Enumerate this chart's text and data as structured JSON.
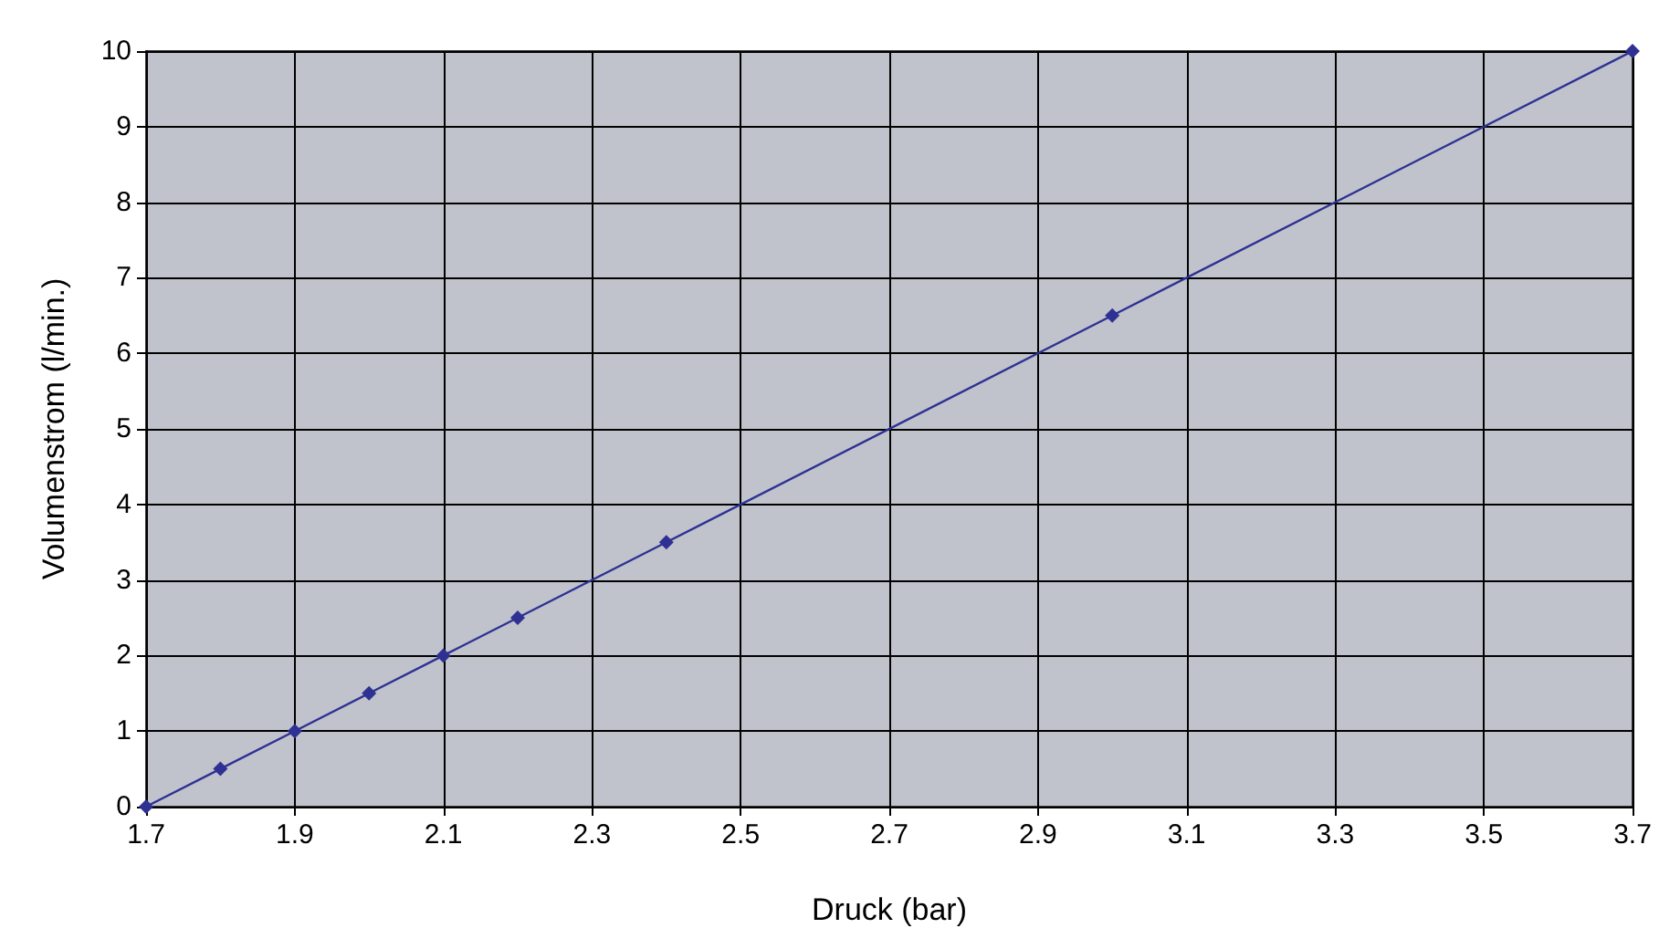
{
  "chart_data": {
    "type": "line",
    "xlabel": "Druck (bar)",
    "ylabel": "Volumenstrom (l/min.)",
    "x": [
      1.7,
      1.8,
      1.9,
      2.0,
      2.1,
      2.2,
      2.4,
      3.0,
      3.7
    ],
    "series": [
      {
        "color": "#2e3192",
        "values": [
          0,
          0.5,
          1,
          1.5,
          2,
          2.5,
          3.5,
          6.5,
          10
        ]
      }
    ],
    "xlim": [
      1.7,
      3.7
    ],
    "xticks": [
      1.7,
      1.9,
      2.1,
      2.3,
      2.5,
      2.7,
      2.9,
      3.1,
      3.3,
      3.5,
      3.7
    ],
    "ylim": [
      0,
      10
    ],
    "yticks": [
      0,
      1,
      2,
      3,
      4,
      5,
      6,
      7,
      8,
      9,
      10
    ],
    "grid": true,
    "marker": "diamond",
    "line_style": "solid"
  }
}
